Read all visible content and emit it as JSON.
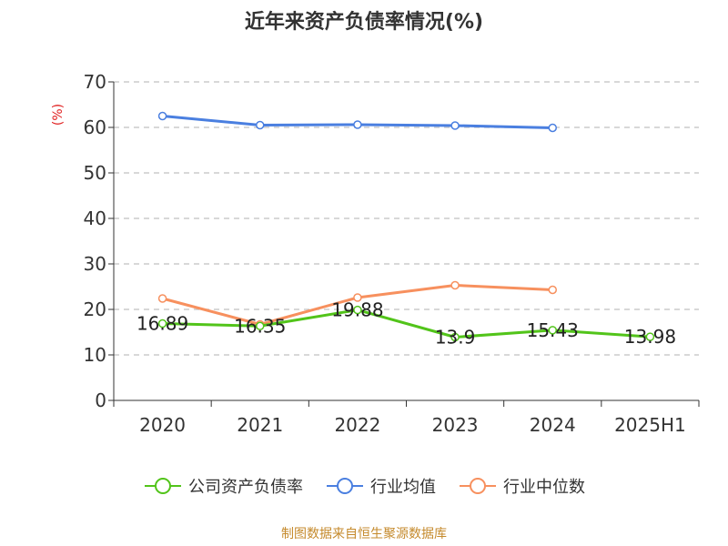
{
  "title": "近年来资产负债率情况(%)",
  "ylabel": "(%)",
  "source": "制图数据来自恒生聚源数据库",
  "colors": {
    "company": "#52c41a",
    "industry_avg": "#4a7fe0",
    "industry_median": "#f7905e",
    "ylabel": "#e02020",
    "axis": "#333333",
    "grid": "#cccccc",
    "source": "#c58a2c"
  },
  "chart_data": {
    "type": "line",
    "title": "近年来资产负债率情况(%)",
    "xlabel": "",
    "ylabel": "(%)",
    "ylim": [
      0,
      70
    ],
    "yticks": [
      "0",
      "10",
      "20",
      "30",
      "40",
      "50",
      "60",
      "70"
    ],
    "grid": true,
    "legend_position": "bottom",
    "categories": [
      "2020",
      "2021",
      "2022",
      "2023",
      "2024",
      "2025H1"
    ],
    "series": [
      {
        "name": "公司资产负债率",
        "values": [
          16.89,
          16.35,
          19.88,
          13.9,
          15.43,
          13.98
        ],
        "labels": [
          "16.89",
          "16.35",
          "19.88",
          "13.9",
          "15.43",
          "13.98"
        ]
      },
      {
        "name": "行业均值",
        "values": [
          62.5,
          60.5,
          60.6,
          60.4,
          59.9,
          null
        ]
      },
      {
        "name": "行业中位数",
        "values": [
          22.4,
          16.7,
          22.6,
          25.3,
          24.3,
          null
        ]
      }
    ]
  }
}
